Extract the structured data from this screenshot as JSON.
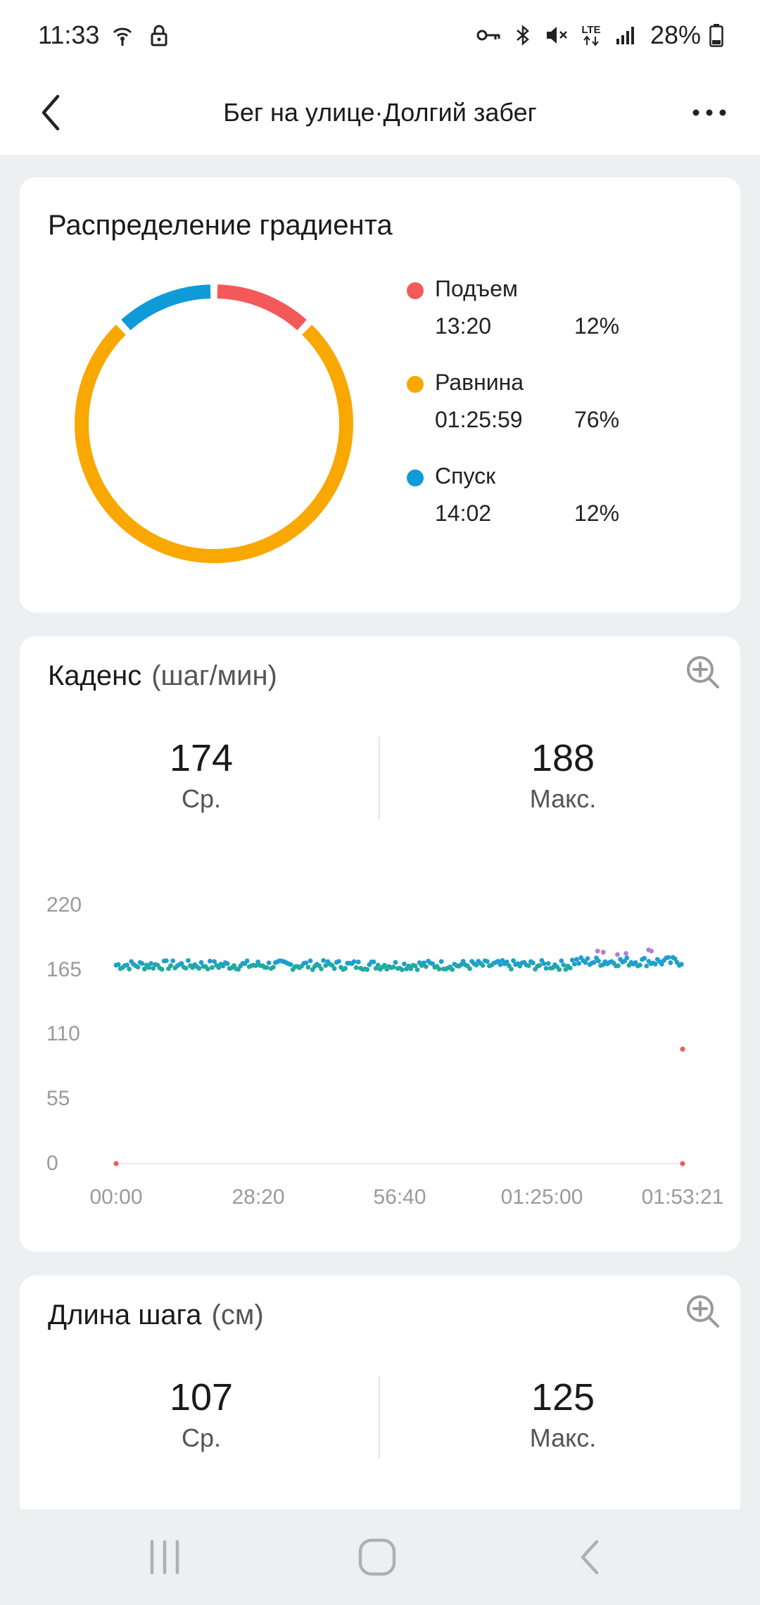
{
  "status_bar": {
    "time": "11:33",
    "battery_pct": "28%",
    "left_icons": [
      "hotspot-icon",
      "lock-icon"
    ],
    "right_icons": [
      "vpn-key-icon",
      "bluetooth-icon",
      "mute-icon",
      "lte-icon",
      "signal-icon",
      "battery-icon"
    ],
    "lte_label": "LTE"
  },
  "header": {
    "title": "Бег на улице·Долгий забег",
    "back_icon": "back-arrow-icon",
    "more_icon": "more-dots-icon"
  },
  "gradient": {
    "title": "Распределение градиента",
    "items": [
      {
        "name": "Подъем",
        "time": "13:20",
        "pct": "12%",
        "color": "#f4595a",
        "share": 0.12
      },
      {
        "name": "Равнина",
        "time": "01:25:59",
        "pct": "76%",
        "color": "#f8a800",
        "share": 0.76
      },
      {
        "name": "Спуск",
        "time": "14:02",
        "pct": "12%",
        "color": "#0f9bd8",
        "share": 0.12
      }
    ]
  },
  "cadence": {
    "title": "Каденс",
    "unit": "(шаг/мин)",
    "avg_value": "174",
    "avg_label": "Ср.",
    "max_value": "188",
    "max_label": "Макс.",
    "zoom_icon": "zoom-in-icon"
  },
  "chart_data": {
    "type": "scatter",
    "ylim": [
      0,
      220
    ],
    "xlim_seconds": [
      0,
      6801
    ],
    "y_ticks": [
      "220",
      "165",
      "110",
      "55",
      "0"
    ],
    "x_ticks": [
      "00:00",
      "28:20",
      "56:40",
      "01:25:00",
      "01:53:21"
    ],
    "series": [
      {
        "color": "#1e9fcf",
        "values_summary": "cadence readings around 168–178 across the whole run"
      },
      {
        "color": "#22a9a0",
        "values_summary": "cadence readings around 165–172 across the whole run"
      },
      {
        "color": "#b07ee0",
        "values_summary": "a few readings near 180–183 late in the run"
      },
      {
        "color": "#f4595a",
        "points": [
          [
            0,
            0
          ],
          [
            6801,
            0
          ],
          [
            6801,
            98
          ]
        ]
      }
    ]
  },
  "stride": {
    "title": "Длина шага",
    "unit": "(см)",
    "avg_value": "107",
    "avg_label": "Ср.",
    "max_value": "125",
    "max_label": "Макс.",
    "zoom_icon": "zoom-in-icon"
  },
  "nav_bar": {
    "icons": [
      "recent-apps-icon",
      "home-icon",
      "back-icon"
    ]
  }
}
